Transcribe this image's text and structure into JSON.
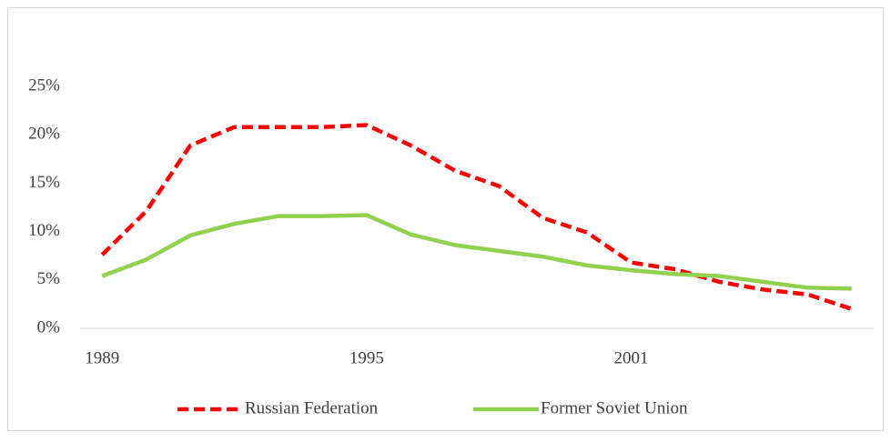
{
  "chart_data": {
    "type": "line",
    "categories": [
      "1989",
      null,
      null,
      null,
      null,
      null,
      "1995",
      null,
      null,
      null,
      null,
      null,
      "2001",
      null,
      null,
      null,
      null,
      null
    ],
    "series": [
      {
        "name": "Russian Federation",
        "color": "#ff0000",
        "dash": true,
        "values": [
          7.6,
          12.1,
          18.9,
          20.8,
          20.8,
          20.8,
          21.0,
          18.9,
          16.3,
          14.7,
          11.4,
          9.9,
          6.8,
          6.1,
          4.8,
          4.0,
          3.5,
          2.0
        ]
      },
      {
        "name": "Former Soviet Union",
        "color": "#92d050",
        "dash": false,
        "values": [
          5.4,
          7.1,
          9.6,
          10.8,
          11.6,
          11.6,
          11.7,
          9.7,
          8.6,
          8.0,
          7.4,
          6.5,
          6.0,
          5.6,
          5.4,
          4.8,
          4.2,
          4.1
        ]
      }
    ],
    "ylim": [
      0,
      25
    ],
    "yticks": [
      {
        "value": 0,
        "label": "0%"
      },
      {
        "value": 5,
        "label": "5%"
      },
      {
        "value": 10,
        "label": "10%"
      },
      {
        "value": 15,
        "label": "15%"
      },
      {
        "value": 20,
        "label": "20%"
      },
      {
        "value": 25,
        "label": "25%"
      }
    ],
    "grid": false,
    "legend": "bottom"
  }
}
